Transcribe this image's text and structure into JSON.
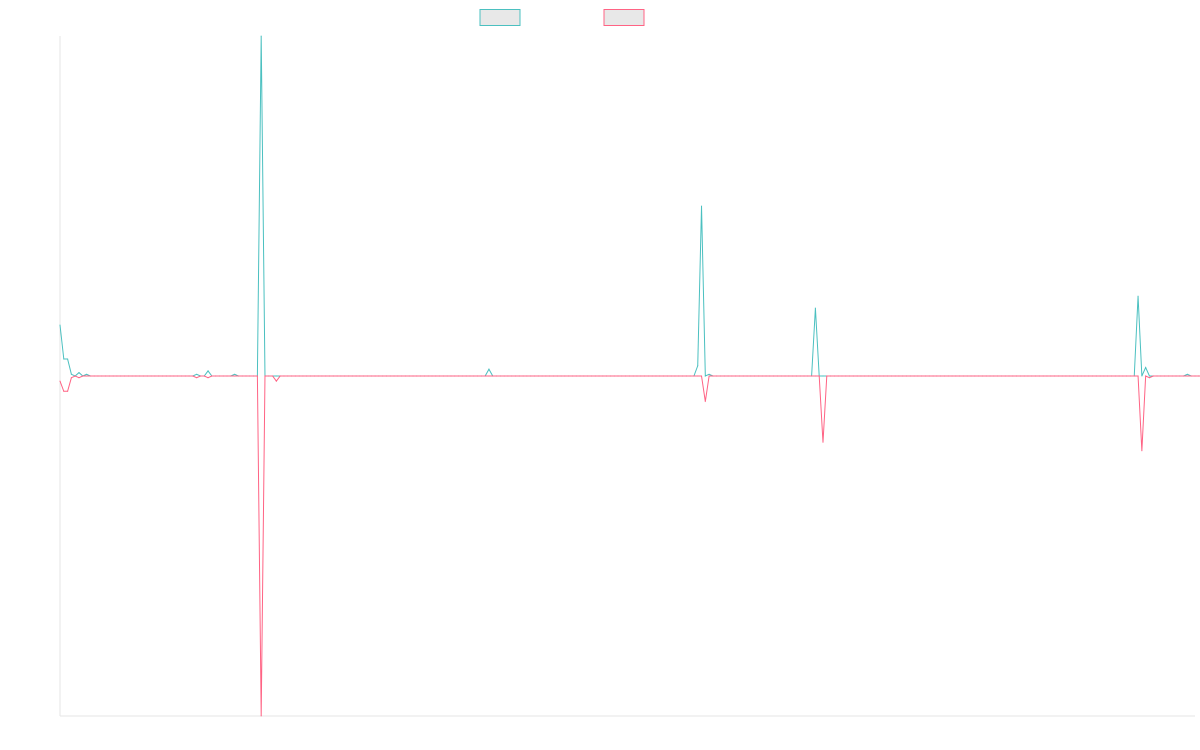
{
  "chart_data": {
    "type": "line",
    "x_count": 300,
    "ylim": [
      -1,
      1
    ],
    "grid": false,
    "legend_position": "top-center",
    "series": [
      {
        "name": "",
        "color": "#4bc0c0",
        "values": [
          0.15,
          0.05,
          0.05,
          0.005,
          0.0,
          0.01,
          0.0,
          0.005,
          0.0,
          0.0,
          0.0,
          0.0,
          0.0,
          0.0,
          0.0,
          0.0,
          0.0,
          0.0,
          0.0,
          0.0,
          0.0,
          0.0,
          0.0,
          0.0,
          0.0,
          0.0,
          0.0,
          0.0,
          0.0,
          0.0,
          0.0,
          0.0,
          0.0,
          0.0,
          0.0,
          0.0,
          0.005,
          0.0,
          0.0,
          0.015,
          0.0,
          0.0,
          0.0,
          0.0,
          0.0,
          0.0,
          0.005,
          0.0,
          0.0,
          0.0,
          0.0,
          0.0,
          0.0,
          1.0,
          0.0,
          0.0,
          0.0,
          0.0,
          0.0,
          0.0,
          0.0,
          0.0,
          0.0,
          0.0,
          0.0,
          0.0,
          0.0,
          0.0,
          0.0,
          0.0,
          0.0,
          0.0,
          0.0,
          0.0,
          0.0,
          0.0,
          0.0,
          0.0,
          0.0,
          0.0,
          0.0,
          0.0,
          0.0,
          0.0,
          0.0,
          0.0,
          0.0,
          0.0,
          0.0,
          0.0,
          0.0,
          0.0,
          0.0,
          0.0,
          0.0,
          0.0,
          0.0,
          0.0,
          0.0,
          0.0,
          0.0,
          0.0,
          0.0,
          0.0,
          0.0,
          0.0,
          0.0,
          0.0,
          0.0,
          0.0,
          0.0,
          0.0,
          0.0,
          0.02,
          0.0,
          0.0,
          0.0,
          0.0,
          0.0,
          0.0,
          0.0,
          0.0,
          0.0,
          0.0,
          0.0,
          0.0,
          0.0,
          0.0,
          0.0,
          0.0,
          0.0,
          0.0,
          0.0,
          0.0,
          0.0,
          0.0,
          0.0,
          0.0,
          0.0,
          0.0,
          0.0,
          0.0,
          0.0,
          0.0,
          0.0,
          0.0,
          0.0,
          0.0,
          0.0,
          0.0,
          0.0,
          0.0,
          0.0,
          0.0,
          0.0,
          0.0,
          0.0,
          0.0,
          0.0,
          0.0,
          0.0,
          0.0,
          0.0,
          0.0,
          0.0,
          0.0,
          0.0,
          0.0,
          0.03,
          0.5,
          0.0,
          0.005,
          0.0,
          0.0,
          0.0,
          0.0,
          0.0,
          0.0,
          0.0,
          0.0,
          0.0,
          0.0,
          0.0,
          0.0,
          0.0,
          0.0,
          0.0,
          0.0,
          0.0,
          0.0,
          0.0,
          0.0,
          0.0,
          0.0,
          0.0,
          0.0,
          0.0,
          0.0,
          0.0,
          0.2,
          0.0,
          0.0,
          0.0,
          0.0,
          0.0,
          0.0,
          0.0,
          0.0,
          0.0,
          0.0,
          0.0,
          0.0,
          0.0,
          0.0,
          0.0,
          0.0,
          0.0,
          0.0,
          0.0,
          0.0,
          0.0,
          0.0,
          0.0,
          0.0,
          0.0,
          0.0,
          0.0,
          0.0,
          0.0,
          0.0,
          0.0,
          0.0,
          0.0,
          0.0,
          0.0,
          0.0,
          0.0,
          0.0,
          0.0,
          0.0,
          0.0,
          0.0,
          0.0,
          0.0,
          0.0,
          0.0,
          0.0,
          0.0,
          0.0,
          0.0,
          0.0,
          0.0,
          0.0,
          0.0,
          0.0,
          0.0,
          0.0,
          0.0,
          0.0,
          0.0,
          0.0,
          0.0,
          0.0,
          0.0,
          0.0,
          0.0,
          0.0,
          0.0,
          0.0,
          0.0,
          0.0,
          0.0,
          0.0,
          0.0,
          0.0,
          0.0,
          0.0,
          0.0,
          0.0,
          0.0,
          0.0,
          0.0,
          0.0,
          0.0,
          0.235,
          0.0,
          0.025,
          0.0,
          0.0,
          0.0,
          0.0,
          0.0,
          0.0,
          0.0,
          0.0,
          0.0,
          0.0,
          0.005,
          0.0,
          0.0,
          0.0,
          0.0
        ]
      },
      {
        "name": "",
        "color": "#ff6384",
        "values": [
          -0.015,
          -0.045,
          -0.045,
          -0.005,
          0.0,
          -0.005,
          0.0,
          0.0,
          0.0,
          0.0,
          0.0,
          0.0,
          0.0,
          0.0,
          0.0,
          0.0,
          0.0,
          0.0,
          0.0,
          0.0,
          0.0,
          0.0,
          0.0,
          0.0,
          0.0,
          0.0,
          0.0,
          0.0,
          0.0,
          0.0,
          0.0,
          0.0,
          0.0,
          0.0,
          0.0,
          0.0,
          -0.005,
          0.0,
          0.0,
          -0.005,
          0.0,
          0.0,
          0.0,
          0.0,
          0.0,
          0.0,
          0.0,
          0.0,
          0.0,
          0.0,
          0.0,
          0.0,
          0.0,
          -1.0,
          0.0,
          0.0,
          0.0,
          -0.015,
          0.0,
          0.0,
          0.0,
          0.0,
          0.0,
          0.0,
          0.0,
          0.0,
          0.0,
          0.0,
          0.0,
          0.0,
          0.0,
          0.0,
          0.0,
          0.0,
          0.0,
          0.0,
          0.0,
          0.0,
          0.0,
          0.0,
          0.0,
          0.0,
          0.0,
          0.0,
          0.0,
          0.0,
          0.0,
          0.0,
          0.0,
          0.0,
          0.0,
          0.0,
          0.0,
          0.0,
          0.0,
          0.0,
          0.0,
          0.0,
          0.0,
          0.0,
          0.0,
          0.0,
          0.0,
          0.0,
          0.0,
          0.0,
          0.0,
          0.0,
          0.0,
          0.0,
          0.0,
          0.0,
          0.0,
          0.0,
          0.0,
          0.0,
          0.0,
          0.0,
          0.0,
          0.0,
          0.0,
          0.0,
          0.0,
          0.0,
          0.0,
          0.0,
          0.0,
          0.0,
          0.0,
          0.0,
          0.0,
          0.0,
          0.0,
          0.0,
          0.0,
          0.0,
          0.0,
          0.0,
          0.0,
          0.0,
          0.0,
          0.0,
          0.0,
          0.0,
          0.0,
          0.0,
          0.0,
          0.0,
          0.0,
          0.0,
          0.0,
          0.0,
          0.0,
          0.0,
          0.0,
          0.0,
          0.0,
          0.0,
          0.0,
          0.0,
          0.0,
          0.0,
          0.0,
          0.0,
          0.0,
          0.0,
          0.0,
          0.0,
          0.0,
          0.0,
          -0.075,
          0.0,
          0.0,
          0.0,
          0.0,
          0.0,
          0.0,
          0.0,
          0.0,
          0.0,
          0.0,
          0.0,
          0.0,
          0.0,
          0.0,
          0.0,
          0.0,
          0.0,
          0.0,
          0.0,
          0.0,
          0.0,
          0.0,
          0.0,
          0.0,
          0.0,
          0.0,
          0.0,
          0.0,
          0.0,
          0.0,
          -0.195,
          0.0,
          0.0,
          0.0,
          0.0,
          0.0,
          0.0,
          0.0,
          0.0,
          0.0,
          0.0,
          0.0,
          0.0,
          0.0,
          0.0,
          0.0,
          0.0,
          0.0,
          0.0,
          0.0,
          0.0,
          0.0,
          0.0,
          0.0,
          0.0,
          0.0,
          0.0,
          0.0,
          0.0,
          0.0,
          0.0,
          0.0,
          0.0,
          0.0,
          0.0,
          0.0,
          0.0,
          0.0,
          0.0,
          0.0,
          0.0,
          0.0,
          0.0,
          0.0,
          0.0,
          0.0,
          0.0,
          0.0,
          0.0,
          0.0,
          0.0,
          0.0,
          0.0,
          0.0,
          0.0,
          0.0,
          0.0,
          0.0,
          0.0,
          0.0,
          0.0,
          0.0,
          0.0,
          0.0,
          0.0,
          0.0,
          0.0,
          0.0,
          0.0,
          0.0,
          0.0,
          0.0,
          0.0,
          0.0,
          0.0,
          0.0,
          0.0,
          0.0,
          0.0,
          0.0,
          0.0,
          0.0,
          0.0,
          0.0,
          -0.22,
          0.0,
          -0.005,
          0.0,
          0.0,
          0.0,
          0.0,
          0.0,
          0.0,
          0.0,
          0.0,
          0.0,
          0.0,
          0.0,
          0.0,
          0.0,
          0.0,
          0.0
        ]
      }
    ],
    "legend_fill": "#e8e8e8",
    "axis_color": "#e5e5e5"
  }
}
